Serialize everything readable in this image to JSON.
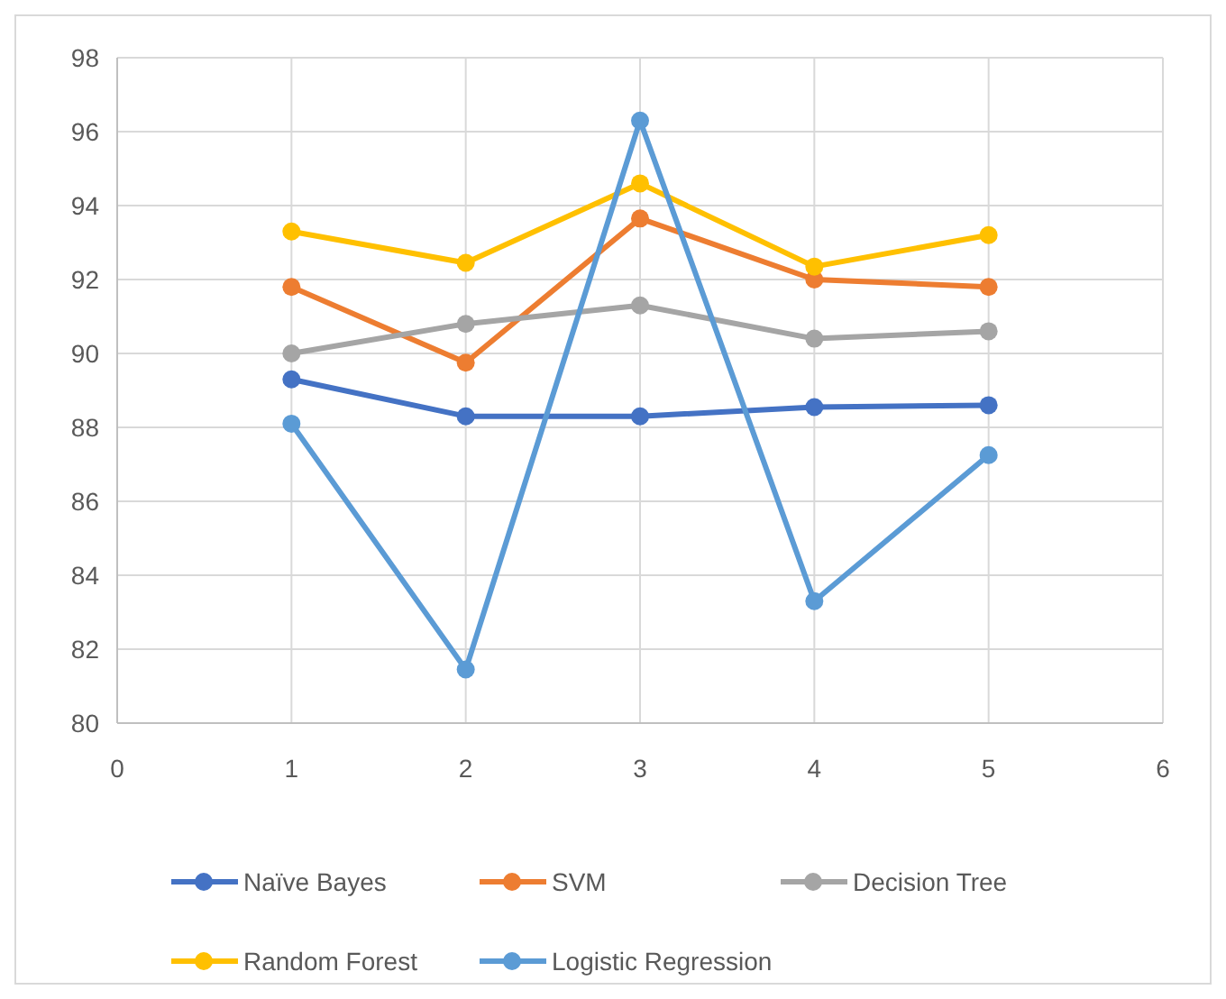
{
  "chart_data": {
    "type": "line",
    "x": [
      1,
      2,
      3,
      4,
      5
    ],
    "xlim": [
      0,
      6
    ],
    "xticks": [
      0,
      1,
      2,
      3,
      4,
      5,
      6
    ],
    "ylim": [
      80,
      98
    ],
    "yticks": [
      80,
      82,
      84,
      86,
      88,
      90,
      92,
      94,
      96,
      98
    ],
    "grid": true,
    "legend": "bottom",
    "marker": "circle",
    "line_style": "solid",
    "series": [
      {
        "name": "Naïve Bayes",
        "color": "#4472c4",
        "values": [
          89.3,
          88.3,
          88.3,
          88.55,
          88.6
        ]
      },
      {
        "name": "SVM",
        "color": "#ed7d31",
        "values": [
          91.8,
          89.75,
          93.65,
          92.0,
          91.8
        ]
      },
      {
        "name": "Decision Tree",
        "color": "#a5a5a5",
        "values": [
          90.0,
          90.8,
          91.3,
          90.4,
          90.6
        ]
      },
      {
        "name": "Random Forest",
        "color": "#ffc000",
        "values": [
          93.3,
          92.45,
          94.6,
          92.35,
          93.2
        ]
      },
      {
        "name": "Logistic Regression",
        "color": "#5b9bd5",
        "values": [
          88.1,
          81.45,
          96.3,
          83.3,
          87.25
        ]
      }
    ]
  }
}
